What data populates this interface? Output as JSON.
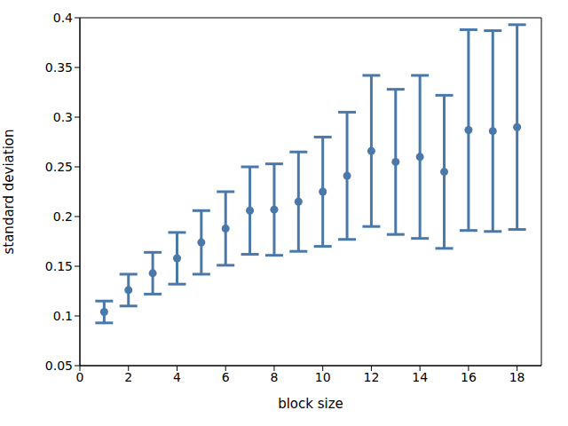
{
  "chart_data": {
    "type": "scatter",
    "xlabel": "block size",
    "ylabel": "standard deviation",
    "x": [
      1,
      2,
      3,
      4,
      5,
      6,
      7,
      8,
      9,
      10,
      11,
      12,
      13,
      14,
      15,
      16,
      17,
      18
    ],
    "values": [
      0.104,
      0.126,
      0.143,
      0.158,
      0.174,
      0.188,
      0.206,
      0.207,
      0.215,
      0.225,
      0.241,
      0.266,
      0.255,
      0.26,
      0.245,
      0.287,
      0.286,
      0.29
    ],
    "errors": [
      0.011,
      0.016,
      0.021,
      0.026,
      0.032,
      0.037,
      0.044,
      0.046,
      0.05,
      0.055,
      0.064,
      0.076,
      0.073,
      0.082,
      0.077,
      0.101,
      0.101,
      0.103
    ],
    "color": "#4a78a8",
    "marker": "circle",
    "xlim": [
      0,
      19
    ],
    "xticks": [
      0,
      2,
      4,
      6,
      8,
      10,
      12,
      14,
      16,
      18
    ],
    "ylim": [
      0.05,
      0.4
    ],
    "yticks": [
      0.05,
      0.1,
      0.15,
      0.2,
      0.25,
      0.3,
      0.35,
      0.4
    ],
    "grid": false
  }
}
